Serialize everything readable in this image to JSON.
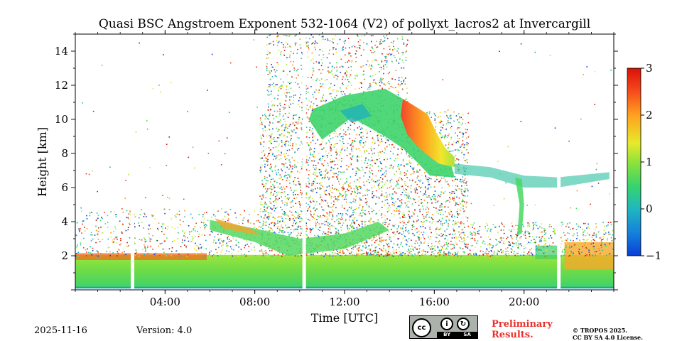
{
  "chart_data": {
    "type": "heatmap",
    "title": "Quasi BSC Angstroem Exponent 532-1064 (V2) of pollyxt_lacros2 at Invercargill",
    "xlabel": "Time [UTC]",
    "ylabel": "Height [km]",
    "x_range_hours": [
      0,
      24
    ],
    "y_range_km": [
      0,
      15
    ],
    "x_ticks": [
      {
        "hour": 4,
        "label": "04:00"
      },
      {
        "hour": 8,
        "label": "08:00"
      },
      {
        "hour": 12,
        "label": "12:00"
      },
      {
        "hour": 16,
        "label": "16:00"
      },
      {
        "hour": 20,
        "label": "20:00"
      }
    ],
    "y_ticks": [
      {
        "value": 2,
        "label": "2"
      },
      {
        "value": 4,
        "label": "4"
      },
      {
        "value": 6,
        "label": "6"
      },
      {
        "value": 8,
        "label": "8"
      },
      {
        "value": 10,
        "label": "10"
      },
      {
        "value": 12,
        "label": "12"
      },
      {
        "value": 14,
        "label": "14"
      }
    ],
    "colorbar": {
      "range": [
        -1,
        3
      ],
      "ticks": [
        {
          "value": -1,
          "label": "−1"
        },
        {
          "value": 0,
          "label": "0"
        },
        {
          "value": 1,
          "label": "1"
        },
        {
          "value": 2,
          "label": "2"
        },
        {
          "value": 3,
          "label": "3"
        }
      ],
      "colors": [
        "#0a3fd6",
        "#17a6d0",
        "#22c493",
        "#47dd5a",
        "#a5e840",
        "#f1e32d",
        "#ff8a1e",
        "#f23511",
        "#d11208"
      ]
    },
    "data_gaps_hours": [
      2.55,
      10.2,
      21.55
    ],
    "features": [
      {
        "name": "boundary layer",
        "height_km": [
          0.1,
          2.1
        ],
        "hours": [
          0,
          24
        ],
        "value": 0.9
      },
      {
        "name": "elevated aerosol layer",
        "height_km": [
          2.5,
          4.0
        ],
        "hours": [
          6.0,
          14.0
        ],
        "value": 0.6
      },
      {
        "name": "cirrus cloud",
        "height_km": [
          6.5,
          11.8
        ],
        "hours": [
          10.0,
          17.0
        ],
        "value": 1.0
      },
      {
        "name": "cirrus cloud (high exponent edge)",
        "height_km": [
          7.5,
          10.5
        ],
        "hours": [
          14.5,
          16.6
        ],
        "value": 2.1
      },
      {
        "name": "thin cloud band",
        "height_km": [
          5.8,
          7.0
        ],
        "hours": [
          17.0,
          24.0
        ],
        "value": 0.4
      },
      {
        "name": "noise region",
        "height_km": [
          2.0,
          15.0
        ],
        "hours": [
          8.2,
          17.5
        ],
        "value": 1.5
      }
    ]
  },
  "footer": {
    "date": "2025-11-16",
    "version": "Version: 4.0",
    "cc_by": "BY",
    "cc_sa": "SA",
    "cc_mark": "cc",
    "preliminary_line1": "Preliminary",
    "preliminary_line2": "Results.",
    "license_line1": "© TROPOS 2025.",
    "license_line2": "CC BY SA 4.0 License."
  }
}
